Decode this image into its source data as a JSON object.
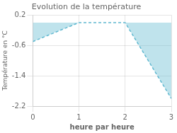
{
  "chart_data": {
    "type": "area",
    "title": "Evolution de la température",
    "xlabel": "heure par heure",
    "ylabel": "Température en °C",
    "x": [
      0,
      1,
      2,
      3
    ],
    "values": [
      -0.5,
      0.0,
      0.0,
      -2.0
    ],
    "color": "#60b8d0",
    "line_style": "dashed",
    "xlim": [
      0,
      3
    ],
    "ylim": [
      -2.2,
      0.2
    ],
    "xticks": [
      0,
      1,
      2,
      3
    ],
    "yticks": [
      0.2,
      -0.6,
      -1.4,
      -2.2
    ],
    "grid": true
  }
}
